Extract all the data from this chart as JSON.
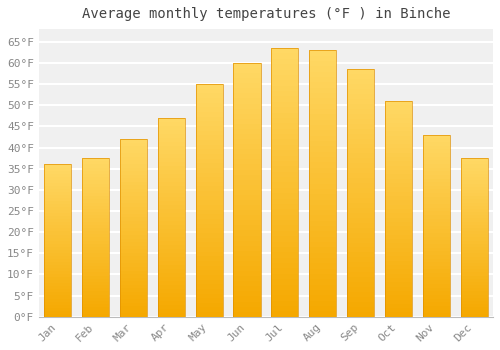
{
  "title": "Average monthly temperatures (°F ) in Binche",
  "months": [
    "Jan",
    "Feb",
    "Mar",
    "Apr",
    "May",
    "Jun",
    "Jul",
    "Aug",
    "Sep",
    "Oct",
    "Nov",
    "Dec"
  ],
  "values": [
    36,
    37.5,
    42,
    47,
    55,
    60,
    63.5,
    63,
    58.5,
    51,
    43,
    37.5
  ],
  "bar_color_bottom": "#F5A800",
  "bar_color_top": "#FFD966",
  "bar_edge_color": "#E09000",
  "background_color": "#ffffff",
  "plot_bg_color": "#f0f0f0",
  "grid_color": "#ffffff",
  "text_color": "#888888",
  "title_color": "#444444",
  "ylim": [
    0,
    68
  ],
  "yticks": [
    0,
    5,
    10,
    15,
    20,
    25,
    30,
    35,
    40,
    45,
    50,
    55,
    60,
    65
  ],
  "ytick_labels": [
    "0°F",
    "5°F",
    "10°F",
    "15°F",
    "20°F",
    "25°F",
    "30°F",
    "35°F",
    "40°F",
    "45°F",
    "50°F",
    "55°F",
    "60°F",
    "65°F"
  ],
  "title_fontsize": 10,
  "tick_fontsize": 8,
  "figsize": [
    5.0,
    3.5
  ],
  "dpi": 100
}
